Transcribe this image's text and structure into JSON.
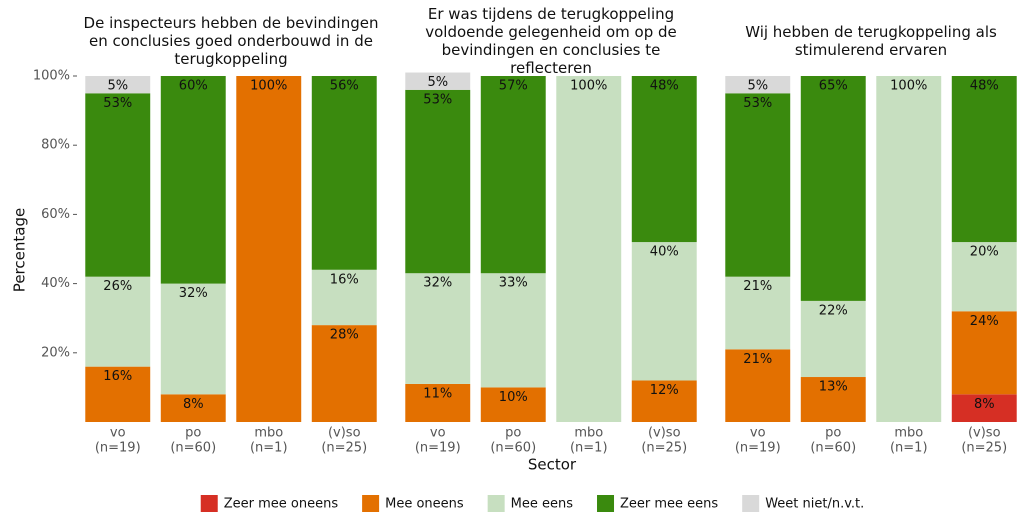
{
  "chart_data": {
    "type": "bar",
    "stacked": true,
    "ylabel": "Percentage",
    "xlabel": "Sector",
    "ylim": [
      0,
      100
    ],
    "yticks": [
      {
        "value": 20,
        "label": "20%"
      },
      {
        "value": 40,
        "label": "40%"
      },
      {
        "value": 60,
        "label": "60%"
      },
      {
        "value": 80,
        "label": "80%"
      },
      {
        "value": 100,
        "label": "100%"
      }
    ],
    "grid": false,
    "legend": "bottom",
    "series": [
      {
        "name": "Zeer mee oneens",
        "color": "#d62f24"
      },
      {
        "name": "Mee oneens",
        "color": "#e37000"
      },
      {
        "name": "Mee eens",
        "color": "#c7dfc0"
      },
      {
        "name": "Zeer mee eens",
        "color": "#3a8a0e"
      },
      {
        "name": "Weet niet/n.v.t.",
        "color": "#d9d9d9"
      }
    ],
    "facets": [
      {
        "title": "De inspecteurs hebben de bevindingen\nen conclusies goed onderbouwd in de\nterugkoppeling",
        "categories": [
          "vo\n(n=19)",
          "po\n(n=60)",
          "mbo\n(n=1)",
          "(v)so\n(n=25)"
        ],
        "series": [
          {
            "values": [
              0,
              0,
              0,
              0
            ],
            "value_labels": [
              null,
              null,
              null,
              null
            ]
          },
          {
            "values": [
              16,
              8,
              100,
              28
            ],
            "value_labels": [
              "16%",
              "8%",
              "100%",
              "28%"
            ]
          },
          {
            "values": [
              26,
              32,
              0,
              16
            ],
            "value_labels": [
              "26%",
              "32%",
              null,
              "16%"
            ]
          },
          {
            "values": [
              53,
              60,
              0,
              56
            ],
            "value_labels": [
              "53%",
              "60%",
              null,
              "56%"
            ]
          },
          {
            "values": [
              5,
              0,
              0,
              0
            ],
            "value_labels": [
              "5%",
              null,
              null,
              null
            ]
          }
        ]
      },
      {
        "title": "Er was tijdens de terugkoppeling\nvoldoende gelegenheid om op de\nbevindingen en conclusies te\nreflecteren",
        "categories": [
          "vo\n(n=19)",
          "po\n(n=60)",
          "mbo\n(n=1)",
          "(v)so\n(n=25)"
        ],
        "series": [
          {
            "values": [
              0,
              0,
              0,
              0
            ],
            "value_labels": [
              null,
              null,
              null,
              null
            ]
          },
          {
            "values": [
              11,
              10,
              0,
              12
            ],
            "value_labels": [
              "11%",
              "10%",
              null,
              "12%"
            ]
          },
          {
            "values": [
              32,
              33,
              100,
              40
            ],
            "value_labels": [
              "32%",
              "33%",
              "100%",
              "40%"
            ]
          },
          {
            "values": [
              53,
              57,
              0,
              48
            ],
            "value_labels": [
              "53%",
              "57%",
              null,
              "48%"
            ]
          },
          {
            "values": [
              5,
              0,
              0,
              0
            ],
            "value_labels": [
              "5%",
              null,
              null,
              null
            ]
          }
        ]
      },
      {
        "title": "Wij hebben de terugkoppeling als\nstimulerend ervaren",
        "categories": [
          "vo\n(n=19)",
          "po\n(n=60)",
          "mbo\n(n=1)",
          "(v)so\n(n=25)"
        ],
        "series": [
          {
            "values": [
              0,
              0,
              0,
              8
            ],
            "value_labels": [
              null,
              null,
              null,
              "8%"
            ]
          },
          {
            "values": [
              21,
              13,
              0,
              24
            ],
            "value_labels": [
              "21%",
              "13%",
              null,
              "24%"
            ]
          },
          {
            "values": [
              21,
              22,
              100,
              20
            ],
            "value_labels": [
              "21%",
              "22%",
              "100%",
              "20%"
            ]
          },
          {
            "values": [
              53,
              65,
              0,
              48
            ],
            "value_labels": [
              "53%",
              "65%",
              null,
              "48%"
            ]
          },
          {
            "values": [
              5,
              0,
              0,
              0
            ],
            "value_labels": [
              "5%",
              null,
              null,
              null
            ]
          }
        ]
      }
    ]
  }
}
